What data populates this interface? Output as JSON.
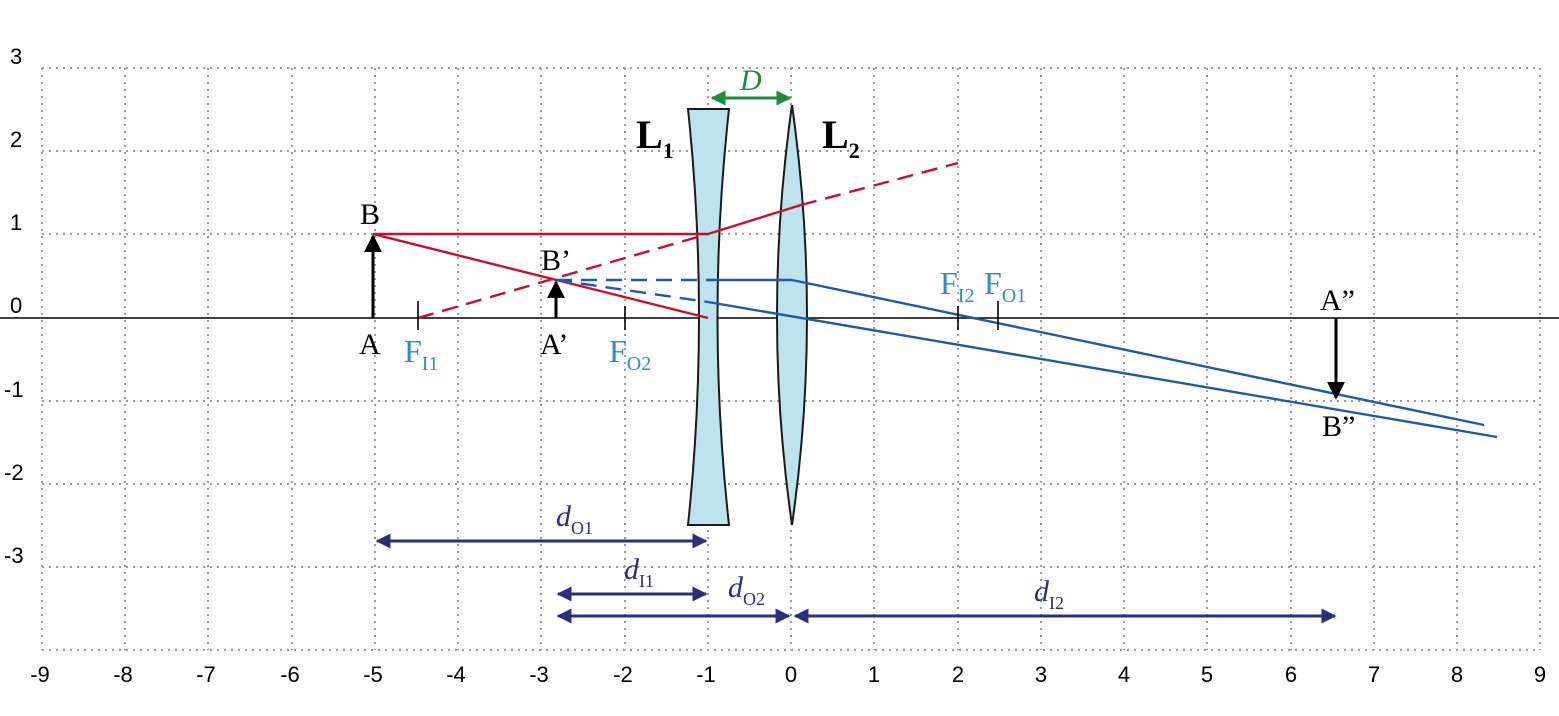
{
  "axes": {
    "x_ticks": [
      "-9",
      "-8",
      "-7",
      "-6",
      "-5",
      "-4",
      "-3",
      "-2",
      "-1",
      "0",
      "1",
      "2",
      "3",
      "4",
      "5",
      "6",
      "7",
      "8",
      "9"
    ],
    "y_ticks": [
      "3",
      "2",
      "1",
      "0",
      "-1",
      "-2",
      "-3"
    ]
  },
  "lenses": {
    "L1": {
      "main": "L",
      "sub": "1"
    },
    "L2": {
      "main": "L",
      "sub": "2"
    },
    "spacing": "D"
  },
  "points": {
    "A": "A",
    "B": "B",
    "A1": "A’",
    "B1": "B’",
    "A2": "A”",
    "B2": "B”"
  },
  "focals": {
    "FI1": {
      "main": "F",
      "sub": "I1"
    },
    "FO2": {
      "main": "F",
      "sub": "O2"
    },
    "FI2": {
      "main": "F",
      "sub": "I2"
    },
    "FO1": {
      "main": "F",
      "sub": "O1"
    }
  },
  "distances": {
    "dO1": {
      "main": "d",
      "sub": "O1"
    },
    "dI1": {
      "main": "d",
      "sub": "I1"
    },
    "dO2": {
      "main": "d",
      "sub": "O2"
    },
    "dI2": {
      "main": "d",
      "sub": "I2"
    }
  },
  "colors": {
    "grid": "#9a9a9a",
    "lens_fill": "#bde3ef",
    "ray_red": "#c8102e",
    "ray_blue": "#1f5aa6",
    "focal_label": "#2a8fc6",
    "distance_arrow": "#2b2f7a",
    "spacing_arrow": "#1e8a3c"
  }
}
